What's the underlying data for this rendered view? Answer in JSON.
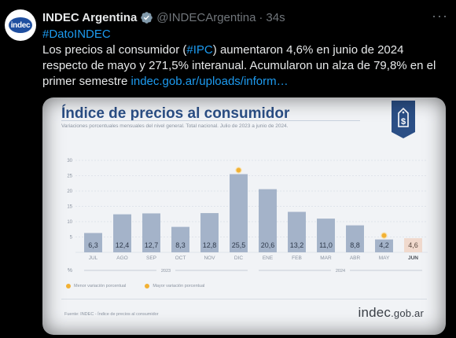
{
  "tweet": {
    "author": "INDEC Argentina",
    "handle": "@INDECArgentina",
    "separator": "·",
    "time": "34s",
    "more": "···",
    "avatar_text": "indec",
    "hashtag": "#DatoINDEC",
    "text_part1": "Los precios al consumidor (",
    "text_tag": "#IPC",
    "text_part2": ") aumentaron 4,6% en junio de 2024 respecto de mayo y 271,5% interanual. Acumularon un alza de 79,8% en el primer semestre ",
    "text_link": "indec.gob.ar/uploads/inform…"
  },
  "card": {
    "legend": {
      "min_label": "Menor variación porcentual",
      "max_label": "Mayor variación porcentual"
    },
    "source": "Fuente: INDEC - Índice de precios al consumidor",
    "logo_main": "indec",
    "logo_domain": ".gob.ar"
  },
  "colors": {
    "bar": "#a4b3c9",
    "bar_highlight": "#f0d9cd",
    "title": "#2b4f86",
    "marker": "#f2b134",
    "badge": "#2b4f86",
    "link": "#1d9bf0"
  },
  "chart_data": {
    "type": "bar",
    "title": "Índice de precios al consumidor",
    "subtitle": "Variaciones porcentuales mensuales del nivel general. Total nacional. Julio de 2023 a junio de 2024.",
    "categories": [
      "JUL",
      "AGO",
      "SEP",
      "OCT",
      "NOV",
      "DIC",
      "ENE",
      "FEB",
      "MAR",
      "ABR",
      "MAY",
      "JUN"
    ],
    "values": [
      6.3,
      12.4,
      12.7,
      8.3,
      12.8,
      25.5,
      20.6,
      13.2,
      11.0,
      8.8,
      4.2,
      4.6
    ],
    "value_labels": [
      "6,3",
      "12,4",
      "12,7",
      "8,3",
      "12,8",
      "25,5",
      "20,6",
      "13,2",
      "11,0",
      "8,8",
      "4,2",
      "4,6"
    ],
    "highlight_index": 11,
    "max_marker_index": 5,
    "min_marker_index": 10,
    "ylim": [
      0,
      30
    ],
    "yticks": [
      0,
      5,
      10,
      15,
      20,
      25,
      30
    ],
    "y_unit": "%",
    "year_groups": [
      {
        "label": "2023",
        "start": 0,
        "end": 5
      },
      {
        "label": "2024",
        "start": 6,
        "end": 11
      }
    ],
    "grid": true,
    "legend": "bottom-left"
  }
}
